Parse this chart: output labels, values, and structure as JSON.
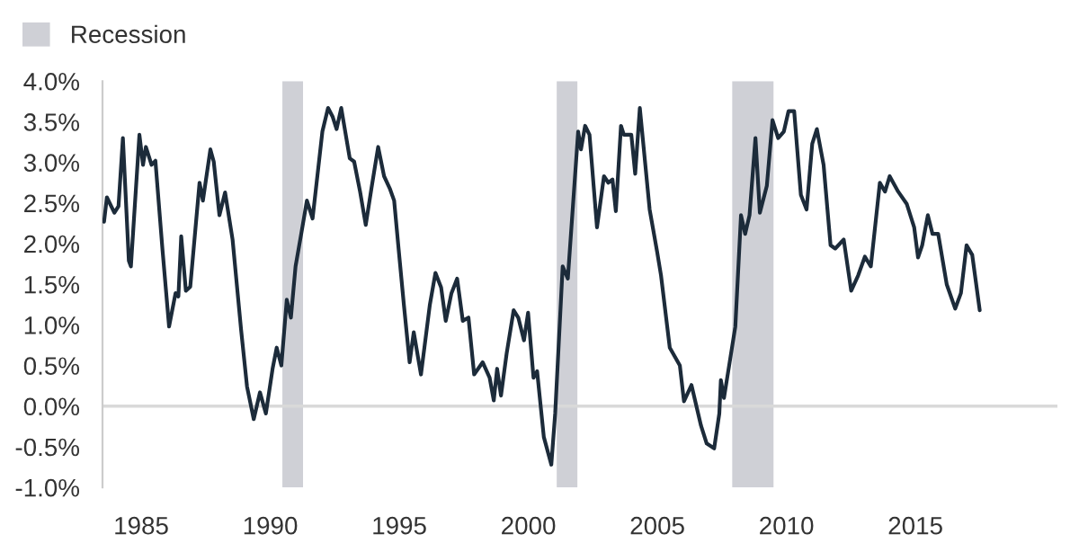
{
  "chart_data": {
    "type": "line",
    "x": [
      1983.56,
      1983.67,
      1983.96,
      1984.12,
      1984.29,
      1984.52,
      1984.6,
      1984.93,
      1985.07,
      1985.18,
      1985.4,
      1985.55,
      1985.82,
      1986.08,
      1986.33,
      1986.44,
      1986.55,
      1986.73,
      1986.9,
      1987.26,
      1987.39,
      1987.68,
      1987.81,
      1988.03,
      1988.25,
      1988.54,
      1988.87,
      1989.1,
      1989.36,
      1989.6,
      1989.83,
      1990.09,
      1990.25,
      1990.43,
      1990.64,
      1990.8,
      1990.98,
      1991.2,
      1991.42,
      1991.64,
      1992.02,
      1992.24,
      1992.42,
      1992.57,
      1992.75,
      1993.08,
      1993.25,
      1993.48,
      1993.7,
      1993.92,
      1994.18,
      1994.41,
      1994.63,
      1994.8,
      1994.96,
      1995.18,
      1995.4,
      1995.56,
      1995.84,
      1996.18,
      1996.4,
      1996.62,
      1996.8,
      1997.02,
      1997.24,
      1997.46,
      1997.68,
      1997.9,
      1998.23,
      1998.5,
      1998.66,
      1998.79,
      1998.94,
      1999.16,
      1999.43,
      1999.61,
      1999.83,
      1999.99,
      2000.2,
      2000.34,
      2000.6,
      2000.89,
      2001.04,
      2001.33,
      2001.53,
      2001.93,
      2002.04,
      2002.2,
      2002.37,
      2002.66,
      2002.93,
      2003.1,
      2003.26,
      2003.39,
      2003.59,
      2003.7,
      2003.99,
      2004.14,
      2004.32,
      2004.7,
      2004.99,
      2005.14,
      2005.48,
      2005.87,
      2006.03,
      2006.32,
      2006.69,
      2006.91,
      2007.2,
      2007.4,
      2007.46,
      2007.58,
      2007.8,
      2008.02,
      2008.24,
      2008.4,
      2008.57,
      2008.8,
      2008.97,
      2009.24,
      2009.46,
      2009.68,
      2009.9,
      2010.08,
      2010.3,
      2010.56,
      2010.78,
      2011.0,
      2011.18,
      2011.44,
      2011.71,
      2011.89,
      2012.22,
      2012.51,
      2012.78,
      2013.04,
      2013.27,
      2013.62,
      2013.82,
      2014.0,
      2014.33,
      2014.66,
      2014.95,
      2015.1,
      2015.26,
      2015.48,
      2015.66,
      2015.88,
      2016.21,
      2016.54,
      2016.76,
      2016.98,
      2017.2,
      2017.49
    ],
    "series": [
      {
        "color": "#1c2b3a",
        "values": [
          2.27,
          2.57,
          2.38,
          2.46,
          3.3,
          1.79,
          1.72,
          3.34,
          2.97,
          3.19,
          2.97,
          3.02,
          1.94,
          0.98,
          1.39,
          1.35,
          2.09,
          1.42,
          1.47,
          2.75,
          2.53,
          3.16,
          3.01,
          2.35,
          2.63,
          2.05,
          0.94,
          0.24,
          -0.16,
          0.17,
          -0.09,
          0.46,
          0.72,
          0.5,
          1.31,
          1.09,
          1.72,
          2.12,
          2.53,
          2.31,
          3.38,
          3.67,
          3.56,
          3.41,
          3.67,
          3.05,
          3.01,
          2.64,
          2.23,
          2.68,
          3.19,
          2.83,
          2.68,
          2.53,
          1.98,
          1.24,
          0.54,
          0.91,
          0.39,
          1.24,
          1.64,
          1.46,
          1.05,
          1.39,
          1.57,
          1.05,
          1.09,
          0.39,
          0.54,
          0.35,
          0.07,
          0.46,
          0.13,
          0.65,
          1.18,
          1.09,
          0.81,
          1.15,
          0.35,
          0.43,
          -0.38,
          -0.72,
          -0.09,
          1.72,
          1.57,
          3.38,
          3.16,
          3.45,
          3.34,
          2.2,
          2.83,
          2.75,
          2.79,
          2.4,
          3.45,
          3.34,
          3.34,
          2.86,
          3.67,
          2.42,
          1.9,
          1.61,
          0.72,
          0.5,
          0.06,
          0.26,
          -0.24,
          -0.46,
          -0.52,
          -0.09,
          0.32,
          0.1,
          0.54,
          0.98,
          2.35,
          2.12,
          2.35,
          3.3,
          2.38,
          2.71,
          3.52,
          3.3,
          3.38,
          3.63,
          3.63,
          2.6,
          2.42,
          3.23,
          3.41,
          2.97,
          1.98,
          1.94,
          2.05,
          1.42,
          1.61,
          1.84,
          1.72,
          2.75,
          2.64,
          2.83,
          2.64,
          2.49,
          2.2,
          1.83,
          1.98,
          2.35,
          2.12,
          2.12,
          1.5,
          1.2,
          1.39,
          1.98,
          1.86,
          1.18
        ]
      }
    ],
    "xlim": [
      1983.5,
      2020.5
    ],
    "xticks": [
      1985,
      1990,
      1995,
      2000,
      2005,
      2010,
      2015
    ],
    "ylim": [
      -1.0,
      4.0
    ],
    "yticks": [
      {
        "value": -1.0,
        "label": "-1.0%"
      },
      {
        "value": -0.5,
        "label": "-0.5%"
      },
      {
        "value": 0.0,
        "label": "0.0%"
      },
      {
        "value": 0.5,
        "label": "0.5%"
      },
      {
        "value": 1.0,
        "label": "1.0%"
      },
      {
        "value": 1.5,
        "label": "1.5%"
      },
      {
        "value": 2.0,
        "label": "2.0%"
      },
      {
        "value": 2.5,
        "label": "2.5%"
      },
      {
        "value": 3.0,
        "label": "3.0%"
      },
      {
        "value": 3.5,
        "label": "3.5%"
      },
      {
        "value": 4.0,
        "label": "4.0%"
      }
    ],
    "bands": [
      {
        "axis": "x",
        "from": 1990.47,
        "to": 1991.27,
        "label": "Recession",
        "color": "#cfd0d6"
      },
      {
        "axis": "x",
        "from": 2001.1,
        "to": 2001.9,
        "color": "#cfd0d6"
      },
      {
        "axis": "x",
        "from": 2007.9,
        "to": 2009.5,
        "color": "#cfd0d6"
      }
    ],
    "ref_lines": [
      {
        "axis": "y",
        "value": 0,
        "color": "#d9d9d9",
        "line_style": "solid"
      }
    ],
    "grid": false,
    "legend": "top left",
    "marker": "none",
    "line_style": "solid"
  }
}
